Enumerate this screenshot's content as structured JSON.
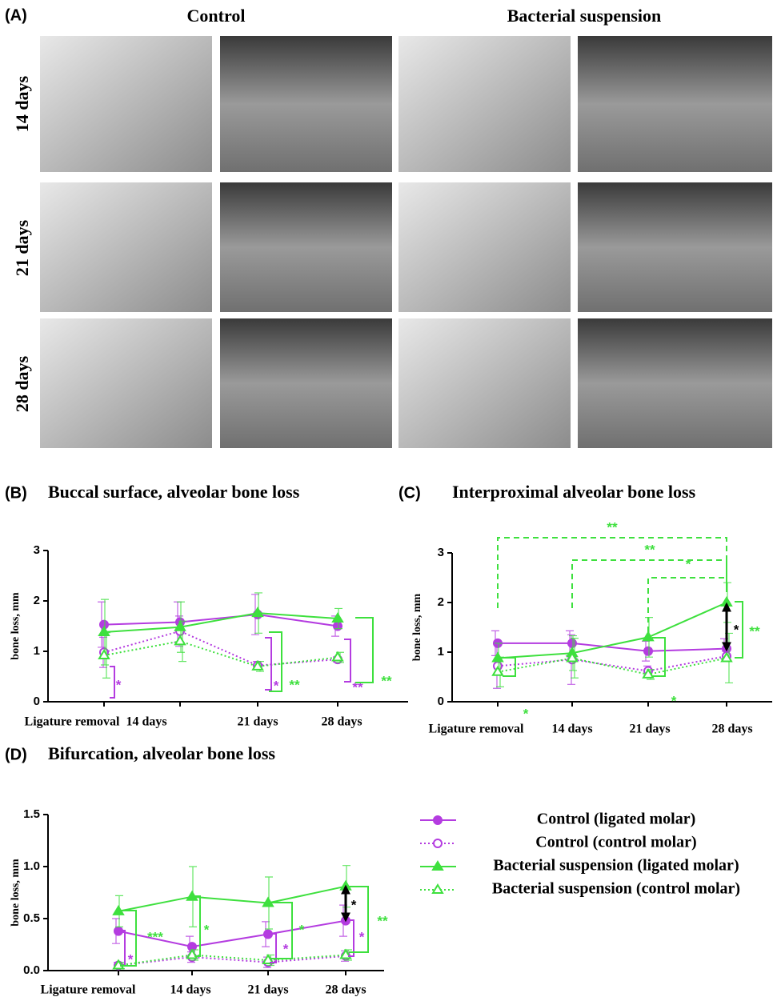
{
  "panel_a": {
    "panel_label": "(A)",
    "columns": [
      "Control",
      "Bacterial  suspension"
    ],
    "rows": [
      "14 days",
      "21 days",
      "28 days"
    ]
  },
  "chart_data": [
    {
      "type": "line",
      "panel_label": "(B)",
      "title": "Buccal surface, alveolar bone loss",
      "y_label": "bone loss, mm",
      "categories": [
        "Ligature removal",
        "14 days",
        "21 days",
        "28 days"
      ],
      "ylim": [
        0,
        3
      ],
      "yticks": [
        0,
        1,
        2,
        3
      ],
      "series": [
        {
          "color": "#b43ce0",
          "marker": "circle",
          "filled": true,
          "dashed": false,
          "values": [
            1.53,
            1.58,
            1.73,
            1.5
          ],
          "errors": [
            0.45,
            0.4,
            0.4,
            0.2
          ]
        },
        {
          "color": "#b43ce0",
          "marker": "circle",
          "filled": false,
          "dashed": true,
          "values": [
            0.98,
            1.4,
            0.72,
            0.84
          ],
          "errors": [
            0.3,
            0.3,
            0.08,
            0.05
          ]
        },
        {
          "color": "#3ee03e",
          "marker": "triangle",
          "filled": true,
          "dashed": false,
          "values": [
            1.38,
            1.48,
            1.76,
            1.65
          ],
          "errors": [
            0.65,
            0.5,
            0.4,
            0.2
          ]
        },
        {
          "color": "#3ee03e",
          "marker": "triangle",
          "filled": false,
          "dashed": true,
          "values": [
            0.92,
            1.2,
            0.7,
            0.88
          ],
          "errors": [
            0.45,
            0.4,
            0.1,
            0.1
          ]
        }
      ],
      "annotations": [
        {
          "text": "*",
          "color": "#b43ce0"
        },
        {
          "text": "*",
          "color": "#b43ce0"
        },
        {
          "text": "**",
          "color": "#3ee03e"
        },
        {
          "text": "**",
          "color": "#b43ce0"
        },
        {
          "text": "**",
          "color": "#3ee03e"
        }
      ]
    },
    {
      "type": "line",
      "panel_label": "(C)",
      "title": "Interproximal alveolar bone loss",
      "y_label": "bone loss, mm",
      "categories": [
        "Ligature removal",
        "14 days",
        "21 days",
        "28 days"
      ],
      "ylim": [
        0,
        3
      ],
      "yticks": [
        0,
        1,
        2,
        3
      ],
      "series": [
        {
          "color": "#b43ce0",
          "marker": "circle",
          "filled": true,
          "dashed": false,
          "values": [
            1.18,
            1.18,
            1.02,
            1.07
          ],
          "errors": [
            0.25,
            0.25,
            0.2,
            0.2
          ]
        },
        {
          "color": "#b43ce0",
          "marker": "circle",
          "filled": false,
          "dashed": true,
          "values": [
            0.72,
            0.85,
            0.62,
            0.92
          ],
          "errors": [
            0.45,
            0.5,
            0.1,
            0.1
          ]
        },
        {
          "color": "#3ee03e",
          "marker": "triangle",
          "filled": true,
          "dashed": false,
          "values": [
            0.88,
            0.98,
            1.3,
            2.0
          ],
          "errors": [
            0.3,
            0.35,
            0.4,
            0.4
          ]
        },
        {
          "color": "#3ee03e",
          "marker": "triangle",
          "filled": false,
          "dashed": true,
          "values": [
            0.6,
            0.88,
            0.55,
            0.88
          ],
          "errors": [
            0.3,
            0.4,
            0.1,
            0.5
          ]
        }
      ],
      "annotations": [
        {
          "text": "*",
          "color": "#3ee03e"
        },
        {
          "text": "*",
          "color": "#3ee03e"
        },
        {
          "text": "*",
          "color": "#000000"
        },
        {
          "text": "**",
          "color": "#3ee03e"
        },
        {
          "text": "**",
          "color": "#3ee03e"
        },
        {
          "text": "**",
          "color": "#3ee03e"
        },
        {
          "text": "*",
          "color": "#3ee03e"
        }
      ]
    },
    {
      "type": "line",
      "panel_label": "(D)",
      "title": "Bifurcation, alveolar bone loss",
      "y_label": "bone loss, mm",
      "categories": [
        "Ligature removal",
        "14 days",
        "21 days",
        "28 days"
      ],
      "ylim": [
        0,
        1.5
      ],
      "yticks": [
        {
          "value": 0,
          "label": "0.0"
        },
        {
          "value": 0.5,
          "label": "0.5"
        },
        {
          "value": 1,
          "label": "1.0"
        },
        {
          "value": 1.5,
          "label": "1.5"
        }
      ],
      "legend": true,
      "series": [
        {
          "name": "Control (ligated molar)",
          "color": "#b43ce0",
          "marker": "circle",
          "filled": true,
          "dashed": false,
          "values": [
            0.38,
            0.23,
            0.35,
            0.48
          ],
          "errors": [
            0.12,
            0.1,
            0.12,
            0.15
          ]
        },
        {
          "name": "Control (control molar)",
          "color": "#b43ce0",
          "marker": "circle",
          "filled": false,
          "dashed": true,
          "values": [
            0.05,
            0.13,
            0.08,
            0.14
          ],
          "errors": [
            0.03,
            0.05,
            0.05,
            0.05
          ]
        },
        {
          "name": "Bacterial suspension (ligated molar)",
          "color": "#3ee03e",
          "marker": "triangle",
          "filled": true,
          "dashed": false,
          "values": [
            0.57,
            0.71,
            0.65,
            0.81
          ],
          "errors": [
            0.15,
            0.29,
            0.25,
            0.2
          ]
        },
        {
          "name": "Bacterial suspension (control molar)",
          "color": "#3ee03e",
          "marker": "triangle",
          "filled": false,
          "dashed": true,
          "values": [
            0.05,
            0.15,
            0.1,
            0.15
          ],
          "errors": [
            0.03,
            0.05,
            0.05,
            0.05
          ]
        }
      ],
      "annotations": [
        {
          "text": "*",
          "color": "#b43ce0"
        },
        {
          "text": "***",
          "color": "#3ee03e"
        },
        {
          "text": "*",
          "color": "#3ee03e"
        },
        {
          "text": "*",
          "color": "#b43ce0"
        },
        {
          "text": "*",
          "color": "#3ee03e"
        },
        {
          "text": "*",
          "color": "#000000"
        },
        {
          "text": "*",
          "color": "#b43ce0"
        },
        {
          "text": "**",
          "color": "#3ee03e"
        }
      ]
    }
  ]
}
